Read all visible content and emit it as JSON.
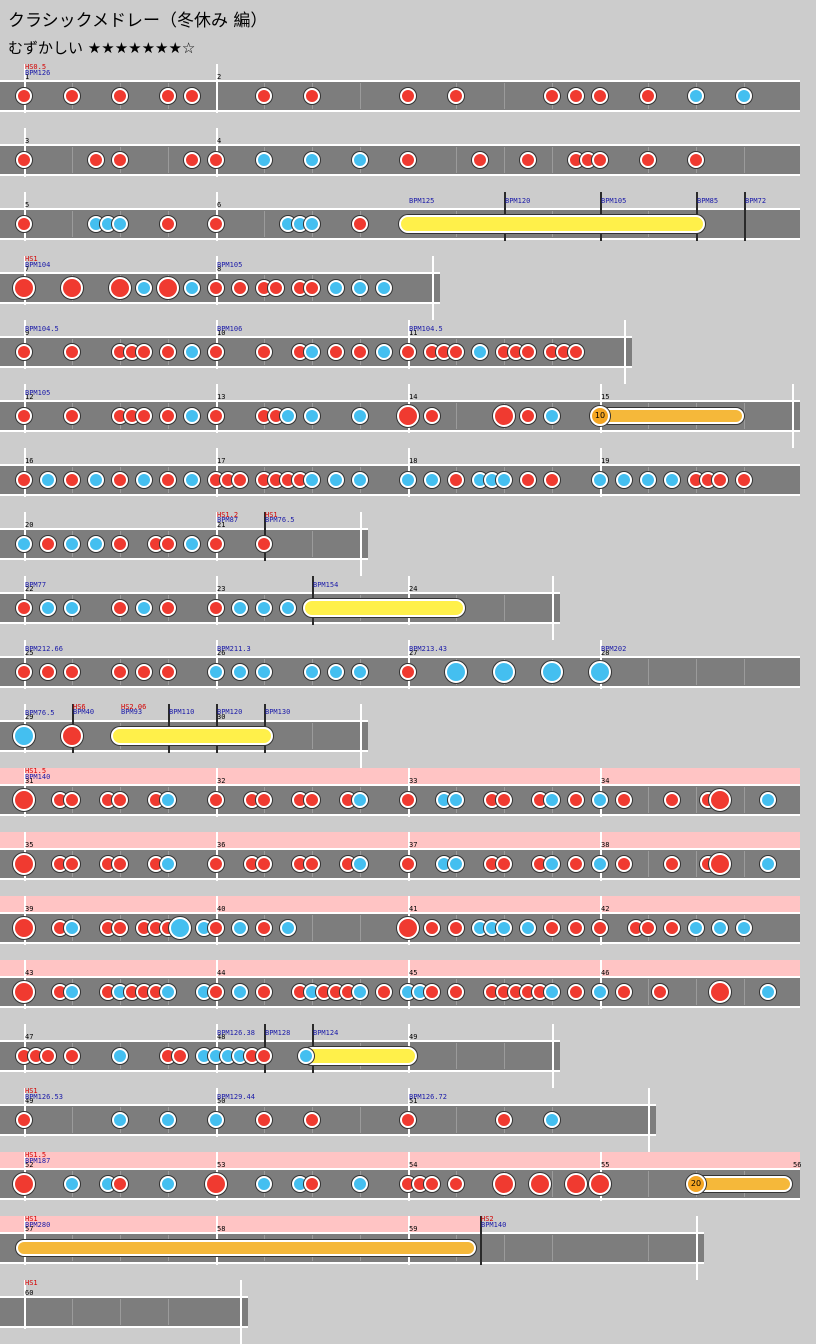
{
  "header": {
    "title": "クラシックメドレー（冬休み 編）",
    "difficulty_label": "むずかしい",
    "stars": "★★★★★★★☆"
  },
  "rows": [
    {
      "bars": [
        "1",
        "2"
      ],
      "labels": [
        {
          "t": "HS0.5",
          "k": "hs",
          "x": 0,
          "l": 0
        },
        {
          "t": "BPM126",
          "k": "bpm",
          "x": 0,
          "l": 1
        }
      ],
      "notes": "d0 d2 d4 d6 d7 d10 d12 d16 d18 d22 d23 d24 d26 k28 k30"
    },
    {
      "bars": [
        "3",
        "4"
      ],
      "labels": [],
      "notes": "d0 d3 d4 d7 d8 k10 k12 k14 d16 d19 d21 d23 d23.5 d24 d26 d28"
    },
    {
      "bars": [
        "5",
        "6"
      ],
      "labels": [
        {
          "t": "BPM125",
          "k": "bpm",
          "x": 16,
          "l": 1
        },
        {
          "t": "BPM120",
          "k": "bpm",
          "x": 20,
          "l": 1
        },
        {
          "t": "BPM105",
          "k": "bpm",
          "x": 24,
          "l": 1
        },
        {
          "t": "BPM85",
          "k": "bpm",
          "x": 28,
          "l": 1
        },
        {
          "t": "BPM72",
          "k": "bpm",
          "x": 30,
          "l": 1
        }
      ],
      "bpmbars": [
        20,
        24,
        28,
        30
      ],
      "notes": "d0 k3 k3.5 k4 d6 d8 k11 k11.5 k12 d14",
      "rolls": [
        {
          "t": "drum",
          "s": 16,
          "e": 28
        }
      ]
    },
    {
      "bars": [
        "7",
        "8"
      ],
      "end": 17,
      "labels": [
        {
          "t": "HS1",
          "k": "hs",
          "x": 0,
          "l": 0
        },
        {
          "t": "BPM104",
          "k": "bpm",
          "x": 0,
          "l": 1
        },
        {
          "t": "BPM105",
          "k": "bpm",
          "x": 8,
          "l": 1
        }
      ],
      "notes": "D0 D2 D4 k5 D6 k7 d8 d9 d10 d10.5 d11.5 d12 k13 k14 k15"
    },
    {
      "bars": [
        "9",
        "10",
        "11"
      ],
      "end": 25,
      "labels": [
        {
          "t": "BPM104.5",
          "k": "bpm",
          "x": 0,
          "l": 1
        },
        {
          "t": "BPM106",
          "k": "bpm",
          "x": 8,
          "l": 1
        },
        {
          "t": "BPM104.5",
          "k": "bpm",
          "x": 16,
          "l": 1
        }
      ],
      "notes": "d0 d2 d4 d4.5 d5 d6 k7 k8 d8 d10 d11.5 k12 d13 d14 k15 d16 d17 d17.5 d18 k19 d20 d20.5 d21 d22 d22.5 d23"
    },
    {
      "bars": [
        "12",
        "13",
        "14",
        "15"
      ],
      "end": 32,
      "labels": [
        {
          "t": "BPM105",
          "k": "bpm",
          "x": 0,
          "l": 1
        }
      ],
      "notes": "d0 d2 d4 d4.5 d5 d6 k7 k8 d8 d10 d10.5 k11 k12 k14 D16 d17 D20 d21 k22",
      "balloons": [
        {
          "s": 24,
          "e": 30,
          "n": "10"
        }
      ]
    },
    {
      "bars": [
        "16",
        "17",
        "18",
        "19"
      ],
      "labels": [],
      "notes": "d0 k1 d2 k3 d4 k5 d6 k7 d8 d8.5 d9 d10 d10.5 d11 d11.5 k12 k13 k14 k16 k17 d18 k19 k19.5 k20 d21 d22 k24 k25 k26 k27 d28 d28.5 d29 d30"
    },
    {
      "bars": [
        "20",
        "21"
      ],
      "end": 14,
      "labels": [
        {
          "t": "HS1.2",
          "k": "hs",
          "x": 8,
          "l": -1
        },
        {
          "t": "BPM87",
          "k": "bpm",
          "x": 8,
          "l": 0
        },
        {
          "t": "HS1",
          "k": "hs",
          "x": 10,
          "l": -1
        },
        {
          "t": "BPM76.5",
          "k": "bpm",
          "x": 10,
          "l": 0
        }
      ],
      "bpmbars": [
        10
      ],
      "notes": "k0 d1 k2 k3 d4 d5.5 d6 k7 d8 d10"
    },
    {
      "bars": [
        "22",
        "23",
        "24"
      ],
      "end": 22,
      "labels": [
        {
          "t": "BPM77",
          "k": "bpm",
          "x": 0,
          "l": 1
        },
        {
          "t": "BPM154",
          "k": "bpm",
          "x": 12,
          "l": 1
        }
      ],
      "bpmbars": [
        12
      ],
      "notes": "d0 k1 k2 d4 k5 d6 d8 k9 k10 k11",
      "rolls": [
        {
          "t": "drum",
          "s": 12,
          "e": 18
        }
      ]
    },
    {
      "bars": [
        "25",
        "26",
        "27",
        "28"
      ],
      "labels": [
        {
          "t": "BPM212.66",
          "k": "bpm",
          "x": 0,
          "l": 1
        },
        {
          "t": "BPM211.3",
          "k": "bpm",
          "x": 8,
          "l": 1
        },
        {
          "t": "BPM213.43",
          "k": "bpm",
          "x": 16,
          "l": 1
        },
        {
          "t": "BPM202",
          "k": "bpm",
          "x": 24,
          "l": 1
        }
      ],
      "notes": "d0 d1 d2 d4 d5 d6 k8 k9 k10 k12 k13 k14 d16 K18 K20 K22 K24"
    },
    {
      "bars": [
        "29",
        "30"
      ],
      "end": 14,
      "labels": [
        {
          "t": "BPM76.5",
          "k": "bpm",
          "x": 0,
          "l": 1
        },
        {
          "t": "HS6",
          "k": "hs",
          "x": 2,
          "l": -1
        },
        {
          "t": "BPM40",
          "k": "bpm",
          "x": 2,
          "l": 0
        },
        {
          "t": "HS2.06",
          "k": "hs",
          "x": 4,
          "l": -1
        },
        {
          "t": "BPM93",
          "k": "bpm",
          "x": 4,
          "l": 0
        },
        {
          "t": "BPM110",
          "k": "bpm",
          "x": 6,
          "l": 0
        },
        {
          "t": "BPM120",
          "k": "bpm",
          "x": 8,
          "l": 0
        },
        {
          "t": "BPM130",
          "k": "bpm",
          "x": 10,
          "l": 0
        }
      ],
      "bpmbars": [
        2,
        6,
        8,
        10
      ],
      "notes": "K0 D2",
      "rolls": [
        {
          "t": "drum",
          "s": 4,
          "e": 10
        }
      ]
    },
    {
      "bars": [
        "31",
        "32",
        "33",
        "34"
      ],
      "pink": true,
      "labels": [
        {
          "t": "HS1.5",
          "k": "hs",
          "x": 0,
          "l": 0
        },
        {
          "t": "BPM140",
          "k": "bpm",
          "x": 0,
          "l": 1
        }
      ],
      "notes": "D0 d1.5 d2 d3.5 d4 d5.5 k6 d8 d9.5 d10 d11.5 d12 d13.5 k14 d16 k17.5 k18 d19.5 d20 d21.5 k22 d23 k24 d25 d27 d28.5 D29 k31"
    },
    {
      "bars": [
        "35",
        "36",
        "37",
        "38"
      ],
      "pink": true,
      "labels": [],
      "notes": "D0 d1.5 d2 d3.5 d4 d5.5 k6 d8 d9.5 d10 d11.5 d12 d13.5 k14 d16 k17.5 k18 d19.5 d20 d21.5 k22 d23 k24 d25 d27 d28.5 D29 k31"
    },
    {
      "bars": [
        "39",
        "40",
        "41",
        "42"
      ],
      "pink": true,
      "labels": [],
      "notes": "D0 d1.5 k2 d3.5 d4 d5 d5.5 d6 K6.5 k7.5 d8 k9 d10 k11 D16 d17 d18 k19 k19.5 k20 k21 d22 d23 d24 d25.5 d26 d27 k28 k29 k30"
    },
    {
      "bars": [
        "43",
        "44",
        "45",
        "46"
      ],
      "pink": true,
      "labels": [],
      "notes": "D0 d1.5 k2 d3.5 k4 d4.5 d5 d5.5 k6 k7.5 d8 k9 d10 d11.5 k12 d12.5 d13 d13.5 k14 d15 k16 k16.5 d17 d18 d19.5 d20 d20.5 d21 d21.5 k22 d23 k24 d25 d26.5 D29 k31"
    },
    {
      "bars": [
        "47",
        "48",
        "49"
      ],
      "end": 22,
      "labels": [
        {
          "t": "BPM126.38",
          "k": "bpm",
          "x": 8,
          "l": 1
        },
        {
          "t": "BPM128",
          "k": "bpm",
          "x": 10,
          "l": 1
        },
        {
          "t": "BPM124",
          "k": "bpm",
          "x": 12,
          "l": 1
        }
      ],
      "bpmbars": [
        10,
        12
      ],
      "notes": "d0 d0.5 d1 d2 k4 d6 d6.5 k7.5 k8 k8.5 k9 d9.5 d10 k11.75",
      "rolls": [
        {
          "t": "drum",
          "s": 12,
          "e": 16
        }
      ]
    },
    {
      "bars": [
        "49",
        "50",
        "51"
      ],
      "end": 26,
      "labels": [
        {
          "t": "HS1",
          "k": "hs",
          "x": 0,
          "l": 0
        },
        {
          "t": "BPM126.53",
          "k": "bpm",
          "x": 0,
          "l": 1
        },
        {
          "t": "BPM129.44",
          "k": "bpm",
          "x": 8,
          "l": 1
        },
        {
          "t": "BPM126.72",
          "k": "bpm",
          "x": 16,
          "l": 1
        }
      ],
      "notes": "d0 k4 k6 k8 d10 d12 d16 d20 k22"
    },
    {
      "bars": [
        "52",
        "53",
        "54",
        "55",
        "56"
      ],
      "pink": true,
      "labels": [
        {
          "t": "HS1.5",
          "k": "hs",
          "x": 0,
          "l": 0
        },
        {
          "t": "BPM187",
          "k": "bpm",
          "x": 0,
          "l": 1
        }
      ],
      "notes": "D0 k2 k3.5 d4 k6 D8 k10 k11.5 d12 k14 d16 d16.5 d17 d18 D20 D21.5 D23 D24",
      "balloons": [
        {
          "s": 28,
          "e": 32,
          "n": "20"
        }
      ]
    },
    {
      "bars": [
        "57",
        "58",
        "59"
      ],
      "end": 28,
      "pink": true,
      "pinkEnd": 19,
      "labels": [
        {
          "t": "HS1",
          "k": "hs",
          "x": 0,
          "l": 0
        },
        {
          "t": "BPM280",
          "k": "bpm",
          "x": 0,
          "l": 1
        },
        {
          "t": "HS2",
          "k": "hs",
          "x": 19,
          "l": 0
        },
        {
          "t": "BPM140",
          "k": "bpm",
          "x": 19,
          "l": 1
        }
      ],
      "bpmbars": [
        19
      ],
      "notes": "",
      "rolls": [
        {
          "t": "balloonroll",
          "s": 0,
          "e": 18.5
        }
      ]
    },
    {
      "bars": [
        "60"
      ],
      "end": 9,
      "labels": [
        {
          "t": "HS1",
          "k": "hs",
          "x": 0,
          "l": 0
        }
      ],
      "notes": ""
    }
  ]
}
